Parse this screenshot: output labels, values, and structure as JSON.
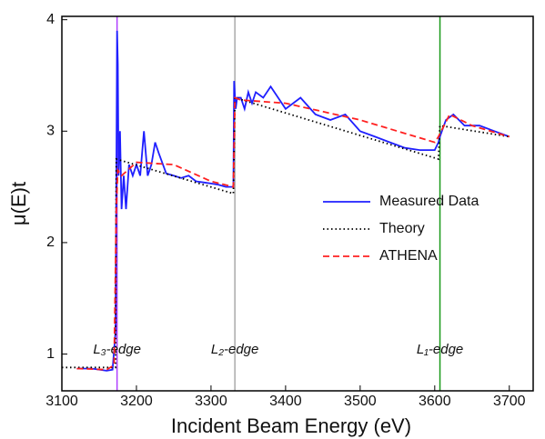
{
  "chart_data": {
    "type": "line",
    "xlabel": "Incident Beam Energy (eV)",
    "ylabel": "μ(E)t",
    "xlim": [
      3100,
      3732
    ],
    "ylim": [
      0.67,
      4.03
    ],
    "xticks": [
      3100,
      3200,
      3300,
      3400,
      3500,
      3600,
      3700
    ],
    "yticks": [
      1,
      2,
      3,
      4
    ],
    "legend": "right",
    "series": [
      {
        "name": "Measured Data",
        "color": "#1f1fff",
        "style": "solid",
        "x": [
          3120,
          3140,
          3160,
          3168,
          3172,
          3174,
          3175,
          3176,
          3178,
          3180,
          3183,
          3186,
          3190,
          3195,
          3200,
          3205,
          3210,
          3215,
          3220,
          3225,
          3230,
          3240,
          3250,
          3260,
          3270,
          3280,
          3290,
          3300,
          3310,
          3320,
          3330,
          3331,
          3333,
          3335,
          3340,
          3345,
          3350,
          3355,
          3360,
          3370,
          3380,
          3390,
          3400,
          3420,
          3440,
          3460,
          3480,
          3500,
          3520,
          3540,
          3560,
          3580,
          3600,
          3605,
          3607,
          3615,
          3625,
          3640,
          3660,
          3680,
          3700
        ],
        "values": [
          0.87,
          0.87,
          0.85,
          0.86,
          1.2,
          3.9,
          3.6,
          2.6,
          3.0,
          2.3,
          2.6,
          2.3,
          2.7,
          2.6,
          2.7,
          2.6,
          3.0,
          2.6,
          2.7,
          2.9,
          2.8,
          2.62,
          2.6,
          2.58,
          2.6,
          2.55,
          2.54,
          2.53,
          2.52,
          2.5,
          2.5,
          3.45,
          3.2,
          3.3,
          3.3,
          3.2,
          3.35,
          3.25,
          3.35,
          3.3,
          3.4,
          3.3,
          3.2,
          3.3,
          3.15,
          3.1,
          3.15,
          3.0,
          2.95,
          2.9,
          2.85,
          2.83,
          2.83,
          2.9,
          2.95,
          3.1,
          3.15,
          3.05,
          3.05,
          3.0,
          2.95
        ]
      },
      {
        "name": "Theory",
        "color": "#000000",
        "style": "dotted",
        "x": [
          3100,
          3172,
          3173,
          3330,
          3332,
          3605,
          3607,
          3700
        ],
        "values": [
          0.88,
          0.88,
          2.75,
          2.44,
          3.3,
          2.75,
          3.05,
          2.95
        ]
      },
      {
        "name": "ATHENA",
        "color": "#ff2020",
        "style": "dashed",
        "x": [
          3120,
          3160,
          3170,
          3173,
          3175,
          3180,
          3200,
          3250,
          3300,
          3330,
          3332,
          3340,
          3400,
          3500,
          3600,
          3605,
          3620,
          3650,
          3700
        ],
        "values": [
          0.87,
          0.86,
          0.9,
          2.3,
          2.65,
          2.6,
          2.72,
          2.7,
          2.55,
          2.5,
          3.3,
          3.28,
          3.25,
          3.1,
          2.9,
          2.95,
          3.15,
          3.05,
          2.95
        ]
      }
    ],
    "edges": [
      {
        "label": "L₃-edge",
        "x": 3174,
        "color": "#b040ff"
      },
      {
        "label": "L₂-edge",
        "x": 3332,
        "color": "#aaaaaa"
      },
      {
        "label": "L₁-edge",
        "x": 3607,
        "color": "#1a9a1a"
      }
    ]
  }
}
